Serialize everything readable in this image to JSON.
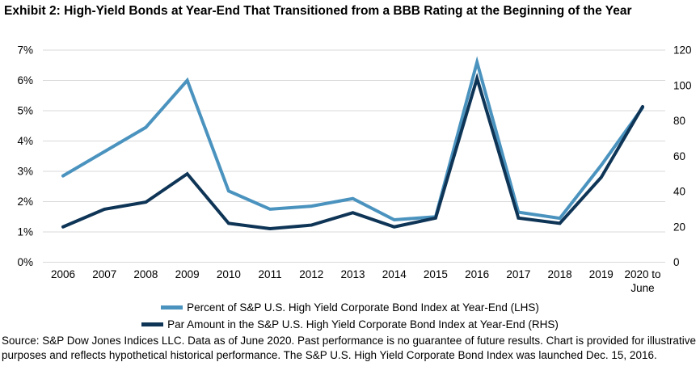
{
  "title": "Exhibit 2: High-Yield Bonds at Year-End That Transitioned from a BBB Rating at the Beginning of the Year",
  "source_note": "Source: S&P Dow Jones Indices LLC. Data as of June 2020. Past performance is no guarantee of future results. Chart is provided for illustrative purposes and reflects hypothetical historical performance. The S&P U.S. High Yield Corporate Bond Index was launched Dec. 15, 2016.",
  "colors": {
    "lhs_line": "#4B93BF",
    "rhs_line": "#0E3456",
    "gridline": "#D9D9D9",
    "text": "#000000"
  },
  "chart_data": {
    "type": "line",
    "categories": [
      "2006",
      "2007",
      "2008",
      "2009",
      "2010",
      "2011",
      "2012",
      "2013",
      "2014",
      "2015",
      "2016",
      "2017",
      "2018",
      "2019",
      "2020 to\nJune"
    ],
    "series": [
      {
        "name": "Percent of S&P U.S. High Yield Corporate Bond Index at Year-End (LHS)",
        "axis": "left",
        "color": "#4B93BF",
        "values": [
          2.85,
          3.65,
          4.45,
          6.0,
          2.35,
          1.75,
          1.85,
          2.1,
          1.4,
          1.5,
          6.6,
          1.65,
          1.45,
          3.2,
          5.1
        ]
      },
      {
        "name": "Par Amount in the S&P U.S. High Yield Corporate Bond Index at Year-End (RHS)",
        "axis": "right",
        "color": "#0E3456",
        "values": [
          20,
          30,
          34,
          50,
          22,
          19,
          21,
          28,
          20,
          25,
          104,
          25,
          22,
          48,
          88
        ]
      }
    ],
    "left_axis": {
      "tick_labels": [
        "0%",
        "1%",
        "2%",
        "3%",
        "4%",
        "5%",
        "6%",
        "7%"
      ],
      "min": 0,
      "max": 7
    },
    "right_axis": {
      "tick_labels": [
        "0",
        "20",
        "40",
        "60",
        "80",
        "100",
        "120"
      ],
      "min": 0,
      "max": 120
    },
    "grid": true,
    "legend_position": "bottom"
  }
}
